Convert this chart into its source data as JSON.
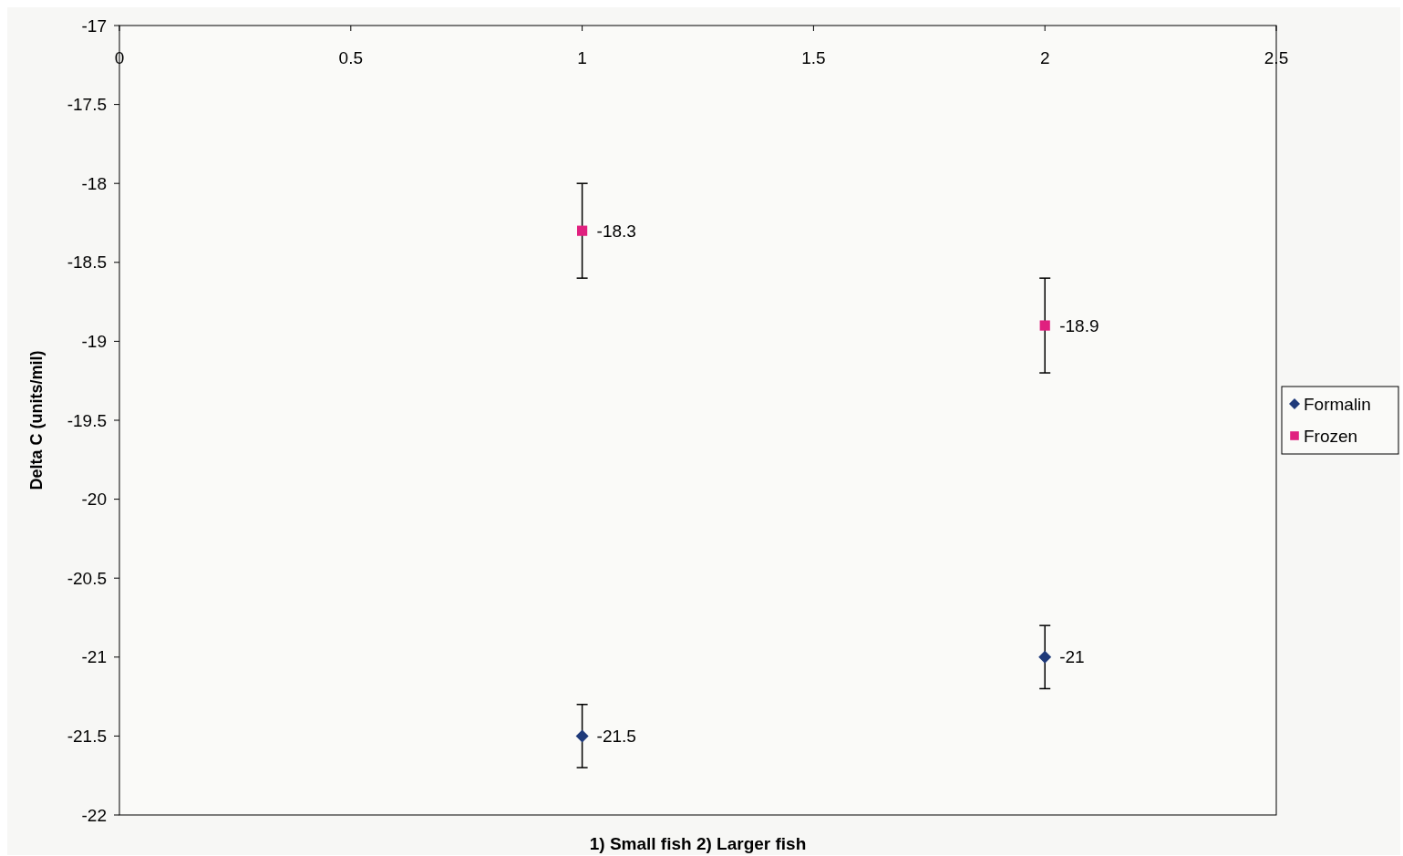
{
  "chart_data": {
    "type": "scatter",
    "xlabel": "1) Small fish 2) Larger fish",
    "ylabel": "Delta C (units/mil)",
    "xlim": [
      0,
      2.5
    ],
    "xticks": [
      0,
      0.5,
      1,
      1.5,
      2,
      2.5
    ],
    "ylim": [
      -22,
      -17
    ],
    "yticks": [
      -22,
      -21.5,
      -21,
      -20.5,
      -20,
      -19.5,
      -19,
      -18.5,
      -18,
      -17.5,
      -17
    ],
    "x": [
      1,
      2
    ],
    "grid": false,
    "legend": "right",
    "data_labels": true,
    "series": [
      {
        "name": "Formalin",
        "color": "#1f3a7a",
        "marker": "diamond",
        "values": [
          -21.5,
          -21
        ],
        "errors": [
          0.2,
          0.2
        ]
      },
      {
        "name": "Frozen",
        "color": "#e0207f",
        "marker": "square",
        "values": [
          -18.3,
          -18.9
        ],
        "errors": [
          0.3,
          0.3
        ]
      }
    ]
  }
}
